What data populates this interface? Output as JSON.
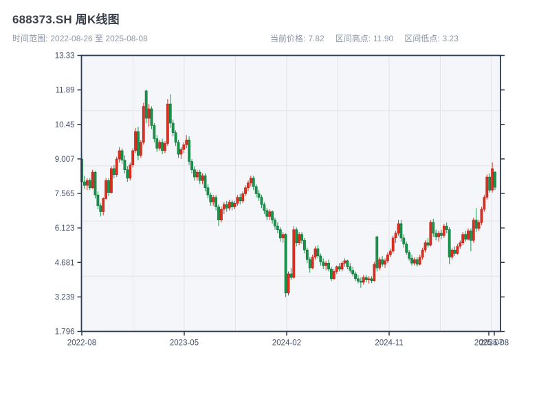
{
  "header": {
    "title": "688373.SH 周K线图",
    "subtitle": {
      "label": "时间范围:",
      "value": "2022-08-26 至 2025-08-08"
    }
  },
  "stats": {
    "items": [
      {
        "label": "当前价格:",
        "value": "7.82"
      },
      {
        "label": "区间高点:",
        "value": "11.90"
      },
      {
        "label": "区间低点:",
        "value": "3.23"
      }
    ]
  },
  "chart_data": {
    "type": "candlestick",
    "symbol": "688373.SH",
    "title": "688373.SH 周K线图",
    "interval": "weekly",
    "start_date": "2022-08-26",
    "end_date": "2025-08-08",
    "current_price": 7.82,
    "range_high": 11.9,
    "range_low": 3.23,
    "ylim": [
      1.796,
      13.33
    ],
    "y_ticks": [
      "13.33",
      "11.89",
      "10.45",
      "9.007",
      "7.565",
      "6.123",
      "4.681",
      "3.239",
      "1.796"
    ],
    "x_ticks": [
      "2022-08",
      "2023-05",
      "2024-02",
      "2024-11",
      "2025-07",
      "2025-08"
    ],
    "grid": true,
    "legend": "none",
    "colors": {
      "up_red": "#dd2f20",
      "up_red_edge": "#b3241a",
      "down_green": "#17954a",
      "down_green_edge": "#0f6f38",
      "axis": "#2b3a50",
      "plot_bg": "#f5f6f9",
      "gridline": "#e3e4e9",
      "tick_text": "#47526a",
      "title_text": "#3a4049",
      "subtitle_text": "#8d97a5"
    },
    "candles_format": [
      "open",
      "high",
      "low",
      "close"
    ],
    "candles": [
      [
        9.0,
        9.2,
        7.75,
        8.05
      ],
      [
        8.05,
        8.3,
        7.75,
        7.9
      ],
      [
        7.9,
        8.2,
        7.7,
        8.1
      ],
      [
        8.1,
        8.2,
        7.7,
        7.8
      ],
      [
        7.8,
        8.55,
        7.75,
        8.45
      ],
      [
        8.45,
        8.5,
        7.35,
        7.5
      ],
      [
        7.5,
        7.65,
        6.9,
        7.05
      ],
      [
        7.05,
        7.15,
        6.6,
        6.8
      ],
      [
        6.8,
        7.4,
        6.65,
        7.35
      ],
      [
        7.35,
        8.2,
        7.3,
        8.1
      ],
      [
        8.1,
        8.2,
        7.45,
        7.6
      ],
      [
        7.6,
        8.7,
        7.55,
        8.6
      ],
      [
        8.6,
        8.75,
        8.2,
        8.35
      ],
      [
        8.35,
        9.1,
        8.25,
        9.0
      ],
      [
        9.0,
        9.5,
        8.85,
        9.35
      ],
      [
        9.35,
        9.45,
        8.8,
        8.95
      ],
      [
        8.95,
        9.15,
        8.4,
        8.55
      ],
      [
        8.55,
        8.7,
        8.05,
        8.2
      ],
      [
        8.2,
        8.85,
        8.1,
        8.75
      ],
      [
        8.75,
        9.45,
        8.65,
        9.35
      ],
      [
        9.35,
        10.3,
        9.25,
        10.15
      ],
      [
        10.15,
        10.35,
        8.95,
        9.15
      ],
      [
        9.15,
        9.8,
        9.05,
        9.7
      ],
      [
        9.7,
        11.35,
        9.6,
        11.2
      ],
      [
        11.85,
        11.9,
        10.5,
        10.7
      ],
      [
        10.7,
        11.3,
        10.35,
        11.1
      ],
      [
        11.1,
        11.2,
        10.25,
        10.4
      ],
      [
        10.4,
        10.5,
        9.7,
        9.85
      ],
      [
        9.85,
        10.0,
        9.3,
        9.45
      ],
      [
        9.45,
        9.8,
        9.35,
        9.7
      ],
      [
        9.7,
        9.85,
        9.2,
        9.35
      ],
      [
        9.35,
        9.75,
        9.25,
        9.65
      ],
      [
        9.65,
        11.5,
        9.55,
        11.3
      ],
      [
        11.3,
        11.7,
        10.3,
        10.5
      ],
      [
        10.5,
        10.65,
        9.95,
        10.1
      ],
      [
        10.1,
        10.2,
        9.55,
        9.7
      ],
      [
        9.7,
        9.8,
        9.05,
        9.2
      ],
      [
        9.2,
        9.5,
        9.0,
        9.4
      ],
      [
        9.4,
        9.7,
        9.25,
        9.6
      ],
      [
        9.6,
        10.0,
        9.45,
        9.8
      ],
      [
        9.8,
        9.95,
        8.75,
        8.9
      ],
      [
        8.9,
        9.0,
        8.4,
        8.55
      ],
      [
        8.55,
        8.7,
        8.1,
        8.25
      ],
      [
        8.25,
        8.55,
        8.1,
        8.45
      ],
      [
        8.45,
        8.55,
        7.95,
        8.1
      ],
      [
        8.1,
        8.4,
        7.95,
        8.3
      ],
      [
        8.3,
        8.4,
        7.65,
        7.8
      ],
      [
        7.8,
        7.95,
        7.35,
        7.5
      ],
      [
        7.5,
        7.6,
        7.05,
        7.2
      ],
      [
        7.2,
        7.5,
        7.05,
        7.4
      ],
      [
        7.4,
        7.5,
        6.85,
        7.0
      ],
      [
        7.0,
        7.1,
        6.2,
        6.45
      ],
      [
        6.45,
        7.0,
        6.35,
        6.9
      ],
      [
        6.9,
        7.2,
        6.7,
        7.1
      ],
      [
        7.1,
        7.25,
        6.8,
        6.95
      ],
      [
        6.95,
        7.3,
        6.85,
        7.2
      ],
      [
        7.2,
        7.3,
        6.85,
        7.0
      ],
      [
        7.0,
        7.25,
        6.9,
        7.15
      ],
      [
        7.15,
        7.5,
        7.05,
        7.4
      ],
      [
        7.4,
        7.55,
        7.1,
        7.25
      ],
      [
        7.25,
        7.65,
        7.15,
        7.55
      ],
      [
        7.55,
        7.9,
        7.45,
        7.8
      ],
      [
        7.8,
        8.1,
        7.65,
        8.0
      ],
      [
        8.0,
        8.3,
        7.85,
        8.2
      ],
      [
        8.2,
        8.3,
        7.7,
        7.85
      ],
      [
        7.85,
        7.95,
        7.4,
        7.55
      ],
      [
        7.55,
        7.7,
        7.25,
        7.4
      ],
      [
        7.4,
        7.5,
        6.95,
        7.1
      ],
      [
        7.1,
        7.2,
        6.7,
        6.85
      ],
      [
        6.85,
        6.95,
        6.45,
        6.6
      ],
      [
        6.6,
        6.9,
        6.45,
        6.8
      ],
      [
        6.8,
        6.85,
        6.3,
        6.45
      ],
      [
        6.45,
        6.55,
        6.05,
        6.2
      ],
      [
        6.2,
        6.35,
        5.9,
        6.05
      ],
      [
        6.05,
        6.15,
        5.55,
        5.7
      ],
      [
        5.7,
        5.95,
        5.5,
        5.85
      ],
      [
        5.85,
        5.9,
        3.23,
        3.4
      ],
      [
        3.4,
        4.3,
        3.3,
        4.2
      ],
      [
        4.2,
        4.45,
        3.95,
        4.05
      ],
      [
        4.05,
        6.2,
        4.0,
        6.05
      ],
      [
        6.05,
        6.15,
        5.35,
        5.5
      ],
      [
        5.5,
        5.95,
        5.4,
        5.85
      ],
      [
        5.85,
        5.95,
        5.45,
        5.6
      ],
      [
        5.6,
        5.7,
        5.05,
        5.2
      ],
      [
        5.2,
        5.3,
        4.65,
        4.8
      ],
      [
        4.8,
        4.9,
        4.25,
        4.45
      ],
      [
        4.45,
        5.0,
        4.4,
        4.9
      ],
      [
        4.9,
        5.35,
        4.8,
        5.25
      ],
      [
        5.25,
        5.4,
        4.85,
        4.95
      ],
      [
        4.95,
        5.05,
        4.55,
        4.7
      ],
      [
        4.7,
        4.85,
        4.4,
        4.55
      ],
      [
        4.55,
        4.75,
        4.35,
        4.65
      ],
      [
        4.65,
        4.8,
        4.3,
        4.4
      ],
      [
        4.4,
        4.5,
        3.9,
        4.0
      ],
      [
        4.0,
        4.4,
        3.95,
        4.3
      ],
      [
        4.3,
        4.55,
        4.2,
        4.5
      ],
      [
        4.5,
        4.65,
        4.3,
        4.4
      ],
      [
        4.4,
        4.75,
        4.3,
        4.65
      ],
      [
        4.65,
        4.85,
        4.5,
        4.75
      ],
      [
        4.75,
        4.8,
        4.4,
        4.5
      ],
      [
        4.5,
        4.65,
        4.25,
        4.35
      ],
      [
        4.35,
        4.5,
        4.1,
        4.2
      ],
      [
        4.2,
        4.3,
        3.9,
        4.0
      ],
      [
        4.0,
        4.15,
        3.8,
        3.9
      ],
      [
        3.9,
        4.05,
        3.62,
        3.85
      ],
      [
        3.85,
        4.15,
        3.75,
        4.05
      ],
      [
        4.05,
        4.15,
        3.85,
        3.95
      ],
      [
        3.95,
        4.1,
        3.8,
        4.0
      ],
      [
        4.0,
        4.1,
        3.82,
        3.92
      ],
      [
        3.92,
        4.7,
        3.88,
        4.6
      ],
      [
        5.75,
        5.8,
        4.3,
        4.45
      ],
      [
        4.45,
        4.9,
        4.35,
        4.8
      ],
      [
        4.8,
        4.95,
        4.5,
        4.6
      ],
      [
        4.6,
        4.85,
        4.45,
        4.75
      ],
      [
        4.75,
        5.1,
        4.65,
        5.0
      ],
      [
        5.0,
        5.25,
        4.9,
        5.15
      ],
      [
        5.15,
        5.8,
        5.05,
        5.7
      ],
      [
        5.7,
        6.0,
        5.5,
        5.9
      ],
      [
        5.9,
        6.45,
        5.8,
        6.3
      ],
      [
        6.3,
        6.45,
        5.55,
        5.7
      ],
      [
        5.7,
        5.85,
        5.3,
        5.45
      ],
      [
        5.45,
        5.55,
        5.0,
        5.1
      ],
      [
        5.1,
        5.2,
        4.75,
        4.85
      ],
      [
        4.85,
        5.0,
        4.55,
        4.65
      ],
      [
        4.65,
        4.9,
        4.55,
        4.8
      ],
      [
        4.8,
        4.9,
        4.5,
        4.6
      ],
      [
        4.6,
        5.0,
        4.55,
        4.9
      ],
      [
        4.9,
        5.3,
        4.8,
        5.2
      ],
      [
        5.2,
        5.6,
        5.1,
        5.5
      ],
      [
        5.5,
        5.7,
        5.3,
        5.4
      ],
      [
        5.4,
        6.45,
        5.35,
        6.35
      ],
      [
        6.35,
        6.5,
        5.75,
        5.9
      ],
      [
        5.9,
        6.05,
        5.6,
        5.75
      ],
      [
        5.75,
        6.0,
        5.55,
        5.9
      ],
      [
        5.9,
        6.05,
        5.65,
        5.8
      ],
      [
        5.8,
        6.3,
        5.7,
        6.2
      ],
      [
        6.2,
        6.35,
        5.9,
        6.05
      ],
      [
        6.05,
        6.15,
        4.6,
        4.9
      ],
      [
        4.9,
        5.3,
        4.8,
        5.2
      ],
      [
        5.2,
        5.35,
        4.95,
        5.05
      ],
      [
        5.05,
        5.45,
        5.0,
        5.35
      ],
      [
        5.35,
        5.6,
        5.25,
        5.5
      ],
      [
        5.5,
        5.95,
        5.4,
        5.85
      ],
      [
        5.85,
        6.0,
        5.55,
        5.65
      ],
      [
        5.65,
        6.1,
        5.6,
        6.0
      ],
      [
        6.0,
        6.1,
        5.15,
        5.6
      ],
      [
        5.6,
        6.55,
        5.5,
        6.45
      ],
      [
        6.45,
        6.95,
        5.95,
        6.1
      ],
      [
        6.1,
        6.45,
        6.0,
        6.35
      ],
      [
        6.35,
        7.0,
        6.25,
        6.9
      ],
      [
        6.9,
        7.5,
        6.8,
        7.4
      ],
      [
        7.4,
        8.35,
        7.3,
        8.25
      ],
      [
        8.25,
        8.4,
        7.6,
        7.7
      ],
      [
        7.7,
        8.86,
        7.6,
        8.6
      ],
      [
        8.45,
        8.5,
        7.7,
        7.82
      ]
    ]
  }
}
